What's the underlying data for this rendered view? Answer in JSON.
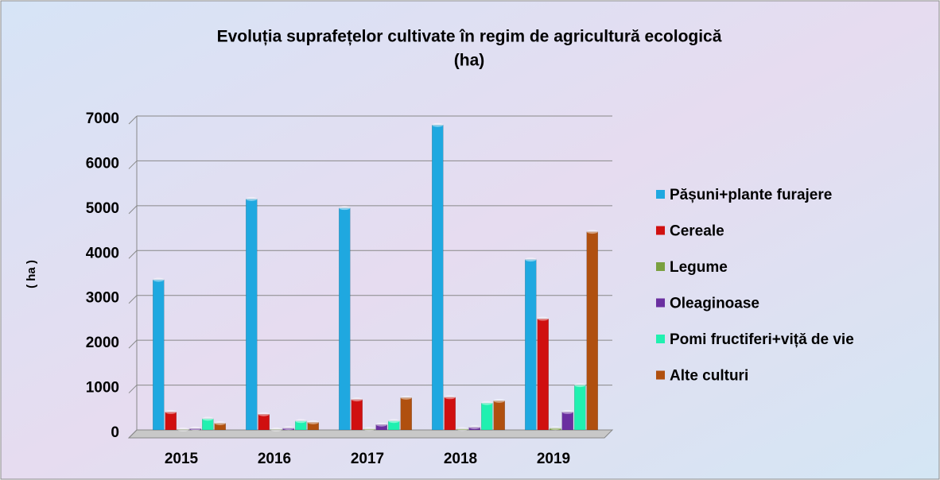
{
  "chart_data": {
    "type": "bar",
    "title": [
      "Evoluția suprafețelor cultivate în regim de agricultură ecologică",
      "(ha)"
    ],
    "y_label": "( ha )",
    "categories": [
      "2015",
      "2016",
      "2017",
      "2018",
      "2019"
    ],
    "series": [
      {
        "name": "Pășuni+plante furajere",
        "color": "#1fa8e0",
        "values": [
          3350,
          5150,
          4950,
          6800,
          3800
        ]
      },
      {
        "name": "Cereale",
        "color": "#d01010",
        "values": [
          400,
          350,
          680,
          730,
          2480
        ]
      },
      {
        "name": "Legume",
        "color": "#7aa040",
        "values": [
          10,
          10,
          20,
          20,
          40
        ]
      },
      {
        "name": "Oleaginoase",
        "color": "#6a2fa0",
        "values": [
          30,
          40,
          120,
          60,
          400
        ]
      },
      {
        "name": "Pomi fructiferi+viță de vie",
        "color": "#20f0b0",
        "values": [
          250,
          200,
          200,
          600,
          1000
        ]
      },
      {
        "name": "Alte culturi",
        "color": "#b0500f",
        "values": [
          150,
          170,
          720,
          650,
          4420
        ]
      }
    ],
    "ylim": [
      0,
      7000
    ],
    "yticks": [
      0,
      1000,
      2000,
      3000,
      4000,
      5000,
      6000,
      7000
    ],
    "grid": true
  }
}
